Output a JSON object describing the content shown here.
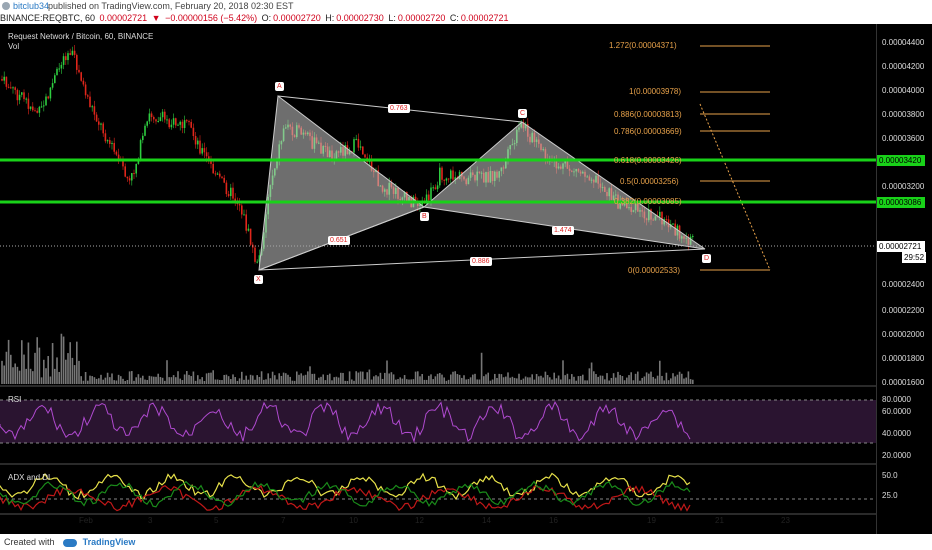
{
  "header": {
    "user": "bitclub34",
    "published": "published on TradingView.com, February 20, 2018 02:30 EST"
  },
  "ticker": {
    "symbol": "BINANCE:REQBTC, 60",
    "price": "0.00002721",
    "change": "−0.00000156 (−5.42%)",
    "o_label": "O:",
    "o": "0.00002720",
    "h_label": "H:",
    "h": "0.00002730",
    "l_label": "L:",
    "l": "0.00002720",
    "c_label": "C:",
    "c": "0.00002721"
  },
  "chart": {
    "title": "Request Network / Bitcoin, 60, BINANCE",
    "vol_label": "Vol",
    "rsi_label": "RSI",
    "adx_label": "ADX and DI",
    "support_levels": [
      "0.00003420",
      "0.00003086"
    ],
    "current_price": "0.00002721",
    "countdown": "29:52",
    "colors": {
      "up": "#2ecc40",
      "down": "#e0261b",
      "level": "#19d219",
      "fib": "#e8a24a",
      "pattern": "#9a9a9a"
    }
  },
  "y_axis": {
    "price": [
      "0.00004400",
      "0.00004200",
      "0.00004000",
      "0.00003800",
      "0.00003600",
      "0.00003200",
      "0.00002400",
      "0.00002200",
      "0.00002000",
      "0.00001800",
      "0.00001600"
    ],
    "rsi": [
      "80.0000",
      "60.0000",
      "40.0000",
      "20.0000"
    ],
    "adx": [
      "50.0",
      "25.0"
    ]
  },
  "x_axis": [
    "Feb",
    "3",
    "5",
    "7",
    "10",
    "12",
    "14",
    "16",
    "19",
    "21",
    "23"
  ],
  "fib_levels": [
    "1.272(0.00004371)",
    "1(0.00003978)",
    "0.886(0.00003813)",
    "0.786(0.00003669)",
    "0.618(0.00003426)",
    "0.5(0.00003256)",
    "0.382(0.00003085)",
    "0(0.00002533)"
  ],
  "pattern": {
    "points": [
      "X",
      "A",
      "B",
      "C",
      "D"
    ],
    "ratios": [
      "0.763",
      "0.651",
      "1.474",
      "0.886"
    ]
  },
  "footer": {
    "created_with": "Created with",
    "brand": "TradingView"
  }
}
